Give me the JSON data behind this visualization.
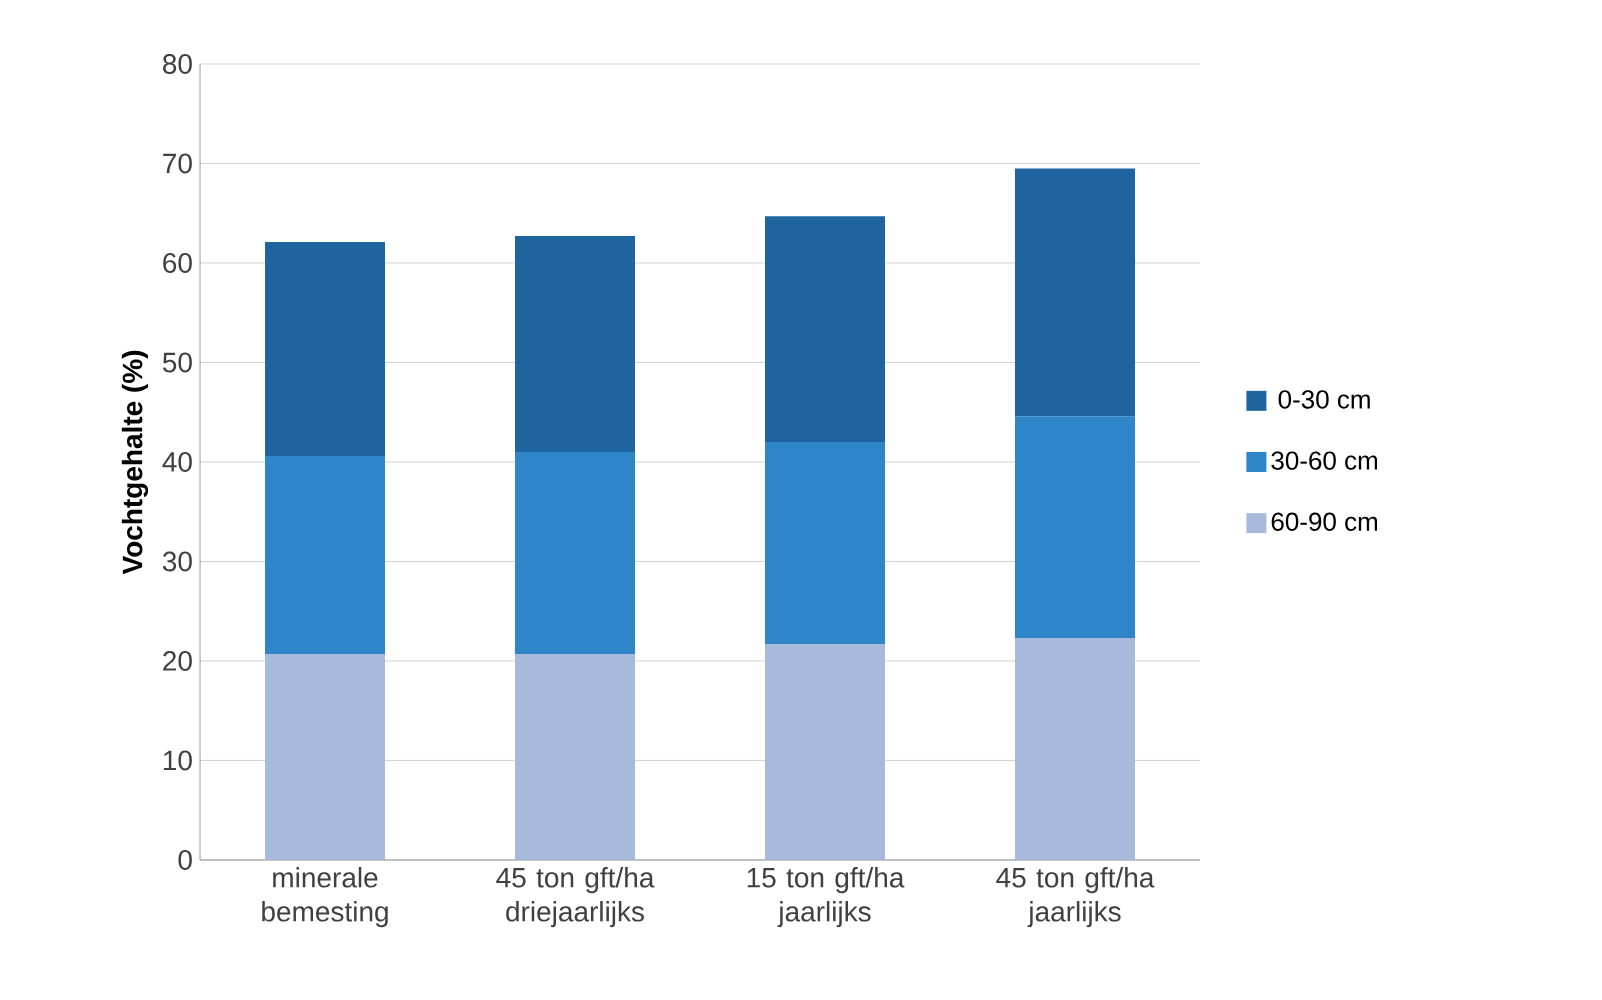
{
  "chart_data": {
    "type": "bar",
    "stacked": true,
    "ylabel": "Vochtgehalte (%)",
    "categories": [
      "minerale bemesting",
      "45 ton gft/ha driejaarlijks",
      "15 ton gft/ha jaarlijks",
      "45 ton gft/ha jaarlijks"
    ],
    "series": [
      {
        "name": "60-90 cm",
        "color": "#a7badc",
        "values": [
          20.7,
          20.7,
          21.7,
          22.3
        ]
      },
      {
        "name": "30-60 cm",
        "color": "#2e86c8",
        "values": [
          19.9,
          20.3,
          20.3,
          22.3
        ]
      },
      {
        "name": "0-30 cm",
        "color": "#1e65a0",
        "values": [
          21.5,
          21.7,
          22.7,
          24.9
        ]
      }
    ],
    "ylim": [
      0,
      80
    ],
    "yticks": [
      0,
      10,
      20,
      30,
      40,
      50,
      60,
      70,
      80
    ],
    "grid": "y",
    "legend": "right"
  }
}
